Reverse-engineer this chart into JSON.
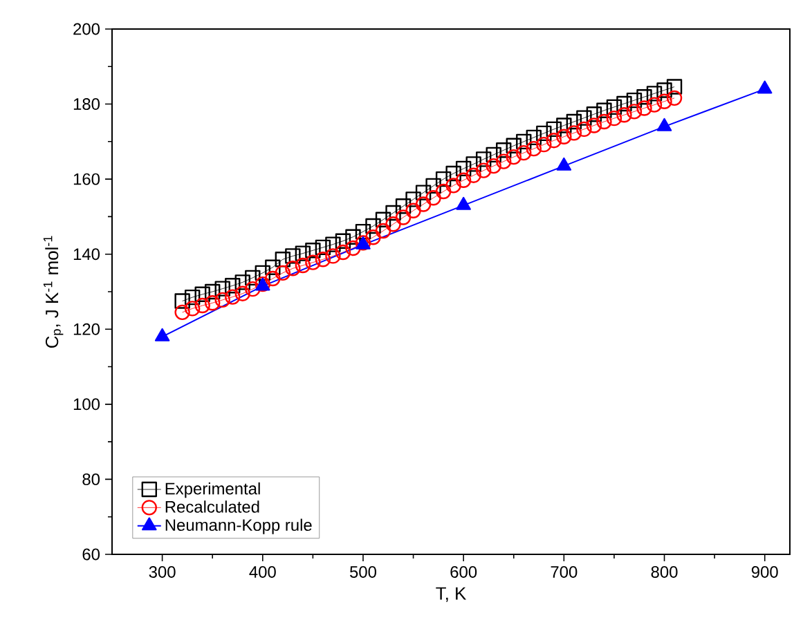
{
  "chart_data": {
    "type": "line",
    "xlabel": "T, K",
    "ylabel": "C$_{p}$, J K$^{-1}$ mol$^{-1}$",
    "xlim": [
      250,
      925
    ],
    "ylim": [
      60,
      200
    ],
    "xticks": [
      300,
      400,
      500,
      600,
      700,
      800,
      900
    ],
    "yticks": [
      60,
      80,
      100,
      120,
      140,
      160,
      180,
      200
    ],
    "legend": "bottom left",
    "grid": false,
    "series": [
      {
        "name": "Experimental",
        "color": "#000000",
        "marker": "square",
        "x": [
          320,
          330,
          340,
          350,
          360,
          370,
          380,
          390,
          400,
          410,
          420,
          430,
          440,
          450,
          460,
          470,
          480,
          490,
          500,
          510,
          520,
          530,
          540,
          550,
          560,
          570,
          580,
          590,
          600,
          610,
          620,
          630,
          640,
          650,
          660,
          670,
          680,
          690,
          700,
          710,
          720,
          730,
          740,
          750,
          760,
          770,
          780,
          790,
          800,
          810
        ],
        "values": [
          127.5,
          128.5,
          129.3,
          130,
          130.8,
          131.6,
          132.5,
          133.7,
          135,
          136.5,
          138.6,
          139.5,
          140.2,
          141,
          141.8,
          142.6,
          143.5,
          144.6,
          146,
          147.5,
          149.2,
          151,
          152.8,
          154.6,
          156.4,
          158.2,
          160,
          161.5,
          162.8,
          164,
          165.3,
          166.5,
          167.7,
          168.9,
          170,
          171.1,
          172.2,
          173.3,
          174.3,
          175.3,
          176.3,
          177.3,
          178.3,
          179.2,
          180.1,
          181,
          181.9,
          182.8,
          183.7,
          184.6
        ]
      },
      {
        "name": "Recalculated",
        "color": "#ff0000",
        "marker": "circle",
        "x": [
          320,
          330,
          340,
          350,
          360,
          370,
          380,
          390,
          400,
          410,
          420,
          430,
          440,
          450,
          460,
          470,
          480,
          490,
          500,
          510,
          520,
          530,
          540,
          550,
          560,
          570,
          580,
          590,
          600,
          610,
          620,
          630,
          640,
          650,
          660,
          670,
          680,
          690,
          700,
          710,
          720,
          730,
          740,
          750,
          760,
          770,
          780,
          790,
          800,
          810
        ],
        "values": [
          124.5,
          125.5,
          126.3,
          127,
          127.8,
          128.6,
          129.5,
          130.7,
          132,
          133.5,
          135,
          136.2,
          137,
          137.8,
          138.6,
          139.5,
          140.5,
          141.6,
          143,
          144.5,
          146.2,
          148,
          149.8,
          151.6,
          153.3,
          155,
          156.7,
          158.3,
          159.7,
          161,
          162.3,
          163.5,
          164.7,
          165.9,
          167,
          168.1,
          169.2,
          170.3,
          171.3,
          172.3,
          173.3,
          174.3,
          175.3,
          176.2,
          177.1,
          178,
          178.9,
          179.8,
          180.7,
          181.6
        ]
      },
      {
        "name": "Neumann-Kopp rule",
        "color": "#0000ff",
        "marker": "triangle",
        "x": [
          300,
          400,
          500,
          600,
          700,
          800,
          900
        ],
        "values": [
          118,
          131.5,
          142.5,
          153,
          163.5,
          174,
          184
        ]
      }
    ]
  }
}
